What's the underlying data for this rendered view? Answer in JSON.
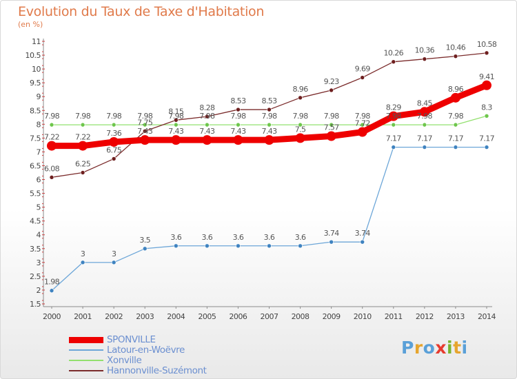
{
  "header": {
    "title": "Evolution du Taux de Taxe d'Habitation",
    "unit": "(en %)"
  },
  "logo": {
    "letters": [
      "P",
      "r",
      "o",
      "x",
      "i",
      "t",
      "i"
    ]
  },
  "chart_data": {
    "type": "line",
    "title": "Evolution du Taux de Taxe d'Habitation",
    "ylabel": "(en %)",
    "xlabel": "",
    "ylim": [
      1.5,
      11
    ],
    "yticks": [
      "1.5",
      "2",
      "2.5",
      "3",
      "3.5",
      "4",
      "4.5",
      "5",
      "5.5",
      "6",
      "6.5",
      "7",
      "7.5",
      "8",
      "8.5",
      "9",
      "9.5",
      "10",
      "10.5",
      "11"
    ],
    "categories": [
      "2000",
      "2001",
      "2002",
      "2003",
      "2004",
      "2005",
      "2006",
      "2007",
      "2008",
      "2009",
      "2010",
      "2011",
      "2012",
      "2013",
      "2014"
    ],
    "grid": false,
    "legend_position": "bottom-left",
    "series": [
      {
        "name": "SPONVILLE",
        "color": "#ee0000",
        "markerColor": "#ee0000",
        "emphasis": true,
        "values": [
          7.22,
          7.22,
          7.36,
          7.43,
          7.43,
          7.43,
          7.43,
          7.43,
          7.5,
          7.57,
          7.72,
          8.29,
          8.45,
          8.96,
          9.41
        ],
        "labels": [
          "7.22",
          "7.22",
          "7.36",
          "7.43",
          "7.43",
          "7.43",
          "7.43",
          "7.43",
          "7.5",
          "7.57",
          "7.72",
          "8.29",
          "8.45",
          "8.96",
          "9.41"
        ]
      },
      {
        "name": "Latour-en-Woëvre",
        "color": "#6ca6d8",
        "markerColor": "#3f83c0",
        "values": [
          1.98,
          3,
          3,
          3.5,
          3.6,
          3.6,
          3.6,
          3.6,
          3.6,
          3.74,
          3.74,
          7.17,
          7.17,
          7.17,
          7.17
        ],
        "labels": [
          "1.98",
          "3",
          "3",
          "3.5",
          "3.6",
          "3.6",
          "3.6",
          "3.6",
          "3.6",
          "3.74",
          "3.74",
          "7.17",
          "7.17",
          "7.17",
          "7.17"
        ]
      },
      {
        "name": "Xonville",
        "color": "#92e06e",
        "markerColor": "#6ec64c",
        "values": [
          7.98,
          7.98,
          7.98,
          7.98,
          7.98,
          7.98,
          7.98,
          7.98,
          7.98,
          7.98,
          7.98,
          7.98,
          7.98,
          7.98,
          8.3
        ],
        "labels": [
          "7.98",
          "7.98",
          "7.98",
          "7.98",
          "7.98",
          "7.98",
          "7.98",
          "7.98",
          "7.98",
          "7.98",
          "7.98",
          "7.98",
          "7.98",
          "7.98",
          "8.3"
        ]
      },
      {
        "name": "Hannonville-Suzémont",
        "color": "#7a2a2a",
        "markerColor": "#6e1f1f",
        "values": [
          6.08,
          6.25,
          6.75,
          7.75,
          8.15,
          8.28,
          8.53,
          8.53,
          8.96,
          9.23,
          9.69,
          10.26,
          10.36,
          10.46,
          10.58
        ],
        "labels": [
          "6.08",
          "6.25",
          "6.75",
          "7.75",
          "8.15",
          "8.28",
          "8.53",
          "8.53",
          "8.96",
          "9.23",
          "9.69",
          "10.26",
          "10.36",
          "10.46",
          "10.58"
        ]
      }
    ]
  }
}
